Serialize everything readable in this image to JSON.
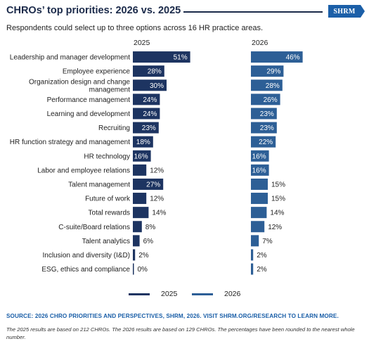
{
  "header": {
    "title": "CHROs’ top priorities: 2026 vs. 2025",
    "logo_text": "SHRM",
    "subtitle": "Respondents could select up to three options across 16 HR practice areas."
  },
  "colors": {
    "bar_2025": "#1d3461",
    "bar_2026": "#2d5f96",
    "title": "#1b2a4a",
    "source": "#1b5fa8"
  },
  "chart_data": {
    "type": "bar",
    "orientation": "horizontal",
    "categories": [
      "Leadership and manager development",
      "Employee experience",
      "Organization design and change\nmanagement",
      "Performance management",
      "Learning and development",
      "Recruiting",
      "HR function strategy and management",
      "HR technology",
      "Labor and employee relations",
      "Talent management",
      "Future of work",
      "Total rewards",
      "C-suite/Board relations",
      "Talent analytics",
      "Inclusion and diversity (I&D)",
      "ESG, ethics and compliance"
    ],
    "series": [
      {
        "name": "2025",
        "values": [
          51,
          28,
          30,
          24,
          24,
          23,
          18,
          16,
          12,
          27,
          12,
          14,
          8,
          6,
          2,
          0
        ]
      },
      {
        "name": "2026",
        "values": [
          46,
          29,
          28,
          26,
          23,
          23,
          22,
          16,
          16,
          15,
          15,
          14,
          12,
          7,
          2,
          2
        ]
      }
    ],
    "value_suffix": "%",
    "legend": "bottom-center"
  },
  "footer": {
    "source": "SOURCE: 2026 CHRO PRIORITIES AND PERSPECTIVES, SHRM, 2026. VISIT SHRM.ORG/RESEARCH TO LEARN MORE.",
    "note": "The 2025 results are based on 212 CHROs. The 2026 results are based on 129 CHROs. The percentages have been rounded to the nearest whole number."
  }
}
